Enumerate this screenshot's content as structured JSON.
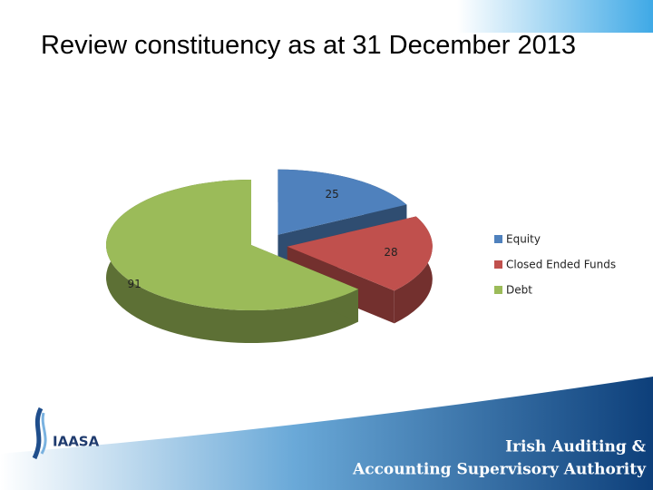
{
  "chart_data": {
    "type": "pie",
    "title": "Review constituency as at 31 December 2013",
    "categories": [
      "Equity",
      "Closed Ended Funds",
      "Debt"
    ],
    "values": [
      25,
      28,
      91
    ],
    "colors": [
      "#4f81bd",
      "#c0504d",
      "#9bbb59"
    ],
    "legend": "right"
  },
  "logo": "IAASA",
  "footer": {
    "lines": [
      "Irish Auditing &",
      "Accounting Supervisory Authority"
    ]
  }
}
